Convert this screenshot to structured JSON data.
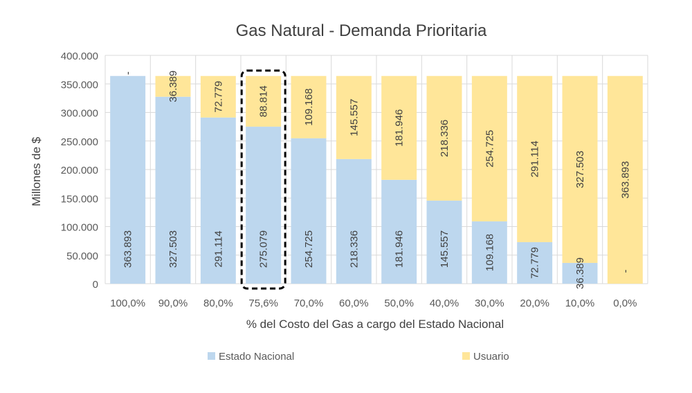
{
  "chart_data": {
    "type": "bar",
    "stacked": true,
    "title": "Gas Natural - Demanda Prioritaria",
    "xlabel": "% del Costo del Gas a cargo del Estado Nacional",
    "ylabel": "Millones de $",
    "ylim": [
      0,
      400000
    ],
    "yticks": [
      "0",
      "50.000",
      "100.000",
      "150.000",
      "200.000",
      "250.000",
      "300.000",
      "350.000",
      "400.000"
    ],
    "categories": [
      "100,0%",
      "90,0%",
      "80,0%",
      "75,6%",
      "70,0%",
      "60,0%",
      "50,0%",
      "40,0%",
      "30,0%",
      "20,0%",
      "10,0%",
      "0,0%"
    ],
    "series": [
      {
        "name": "Estado Nacional",
        "color": "#bdd7ee",
        "values": [
          363893,
          327503,
          291114,
          275079,
          254725,
          218336,
          181946,
          145557,
          109168,
          72779,
          36389,
          0
        ],
        "labels": [
          "363.893",
          "327.503",
          "291.114",
          "275.079",
          "254.725",
          "218.336",
          "181.946",
          "145.557",
          "109.168",
          "72.779",
          "36.389",
          "-"
        ]
      },
      {
        "name": "Usuario",
        "color": "#ffe699",
        "values": [
          0,
          36389,
          72779,
          88814,
          109168,
          145557,
          181946,
          218336,
          254725,
          291114,
          327503,
          363893
        ],
        "labels": [
          "-",
          "36.389",
          "72.779",
          "88.814",
          "109.168",
          "145.557",
          "181.946",
          "218.336",
          "254.725",
          "291.114",
          "327.503",
          "363.893"
        ]
      }
    ],
    "highlight_category": "75,6%",
    "grid": true,
    "legend_position": "bottom"
  }
}
